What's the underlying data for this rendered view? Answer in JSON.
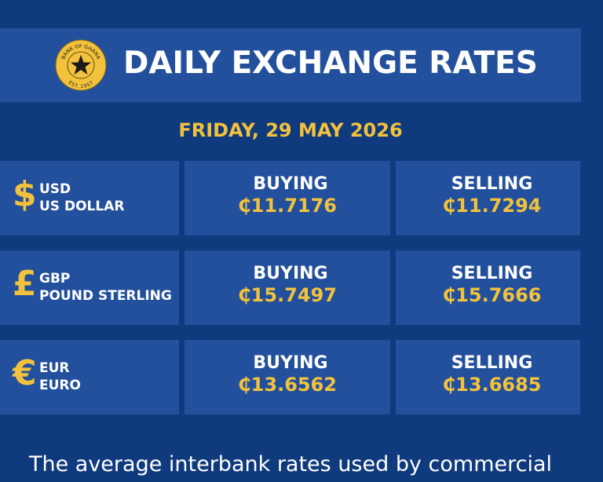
{
  "header": {
    "title": "DAILY EXCHANGE RATES",
    "logo_top": "BANK OF GHANA",
    "logo_bottom": "EST. 1957"
  },
  "date": "FRIDAY, 29 MAY 2026",
  "rows": [
    {
      "symbol": "$",
      "code": "USD",
      "name": "US DOLLAR",
      "buying_label": "BUYING",
      "buying": "₵11.7176",
      "selling_label": "SELLING",
      "selling": "₵11.7294"
    },
    {
      "symbol": "£",
      "code": "GBP",
      "name": "POUND STERLING",
      "buying_label": "BUYING",
      "buying": "₵15.7497",
      "selling_label": "SELLING",
      "selling": "₵15.7666"
    },
    {
      "symbol": "€",
      "code": "EUR",
      "name": "EURO",
      "buying_label": "BUYING",
      "buying": "₵13.6562",
      "selling_label": "SELLING",
      "selling": "₵13.6685"
    }
  ],
  "footer": "The average interbank rates used by commercial"
}
